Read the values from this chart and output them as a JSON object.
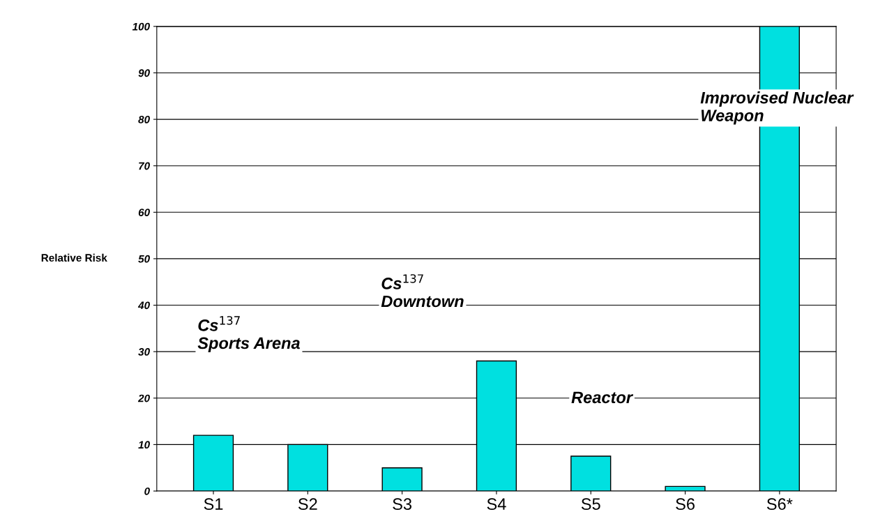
{
  "chart_data": {
    "type": "bar",
    "ylabel": "Relative Risk",
    "categories": [
      "S1",
      "S2",
      "S3",
      "S4",
      "S5",
      "S6",
      "S6*"
    ],
    "values": [
      12,
      10,
      5,
      28,
      7.5,
      1,
      100
    ],
    "color": "#00e0e0",
    "ylim": [
      0,
      100
    ],
    "yticks": [
      0,
      10,
      20,
      30,
      40,
      50,
      60,
      70,
      80,
      90,
      100
    ],
    "grid": "y",
    "annotations": [
      "Cs$^{137}$\nSports Arena",
      "Cs$^{137}$\nDowntown",
      "Reactor",
      "Improvised Nuclear\nWeapon"
    ]
  }
}
